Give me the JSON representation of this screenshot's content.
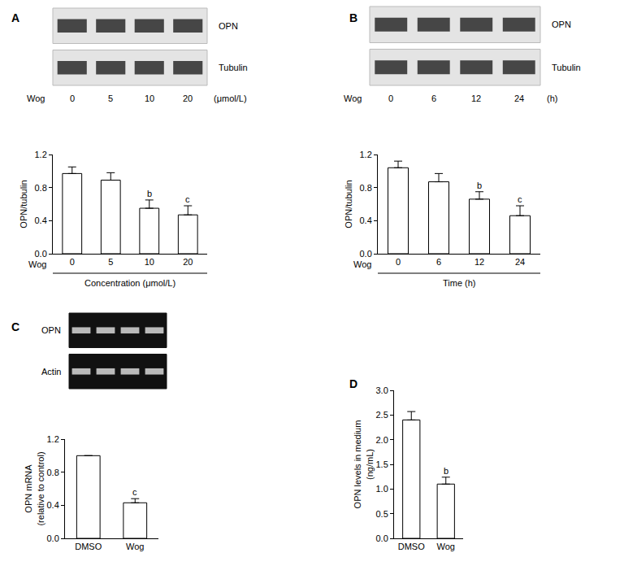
{
  "chart_data": [
    {
      "panel": "A",
      "type": "bar",
      "color": "#ffffff",
      "grid": false,
      "categories": [
        0,
        5,
        10,
        20
      ],
      "values": [
        0.97,
        0.89,
        0.55,
        0.47
      ],
      "errors": [
        0.08,
        0.09,
        0.1,
        0.11
      ],
      "significance": [
        null,
        null,
        "b",
        "c"
      ],
      "ylim": [
        0,
        1.2
      ],
      "yticks": [
        {
          "value": 0,
          "label": "0.0"
        },
        {
          "value": 0.4,
          "label": "0.4"
        },
        {
          "value": 0.8,
          "label": "0.8"
        },
        {
          "value": 1.2,
          "label": "1.2"
        }
      ],
      "ylabel": [
        "OPN/tubulin"
      ],
      "row_label": "Wog",
      "xlabel": "Concentration (μmol/L)",
      "blot": {
        "bands": [
          "OPN",
          "Tubulin"
        ],
        "lane_label": "Wog",
        "lanes": [
          0,
          5,
          10,
          20
        ],
        "lane_unit": "(μmol/L)"
      }
    },
    {
      "panel": "B",
      "type": "bar",
      "color": "#ffffff",
      "grid": false,
      "categories": [
        0,
        6,
        12,
        24
      ],
      "values": [
        1.04,
        0.87,
        0.66,
        0.46
      ],
      "errors": [
        0.08,
        0.1,
        0.09,
        0.12
      ],
      "significance": [
        null,
        null,
        "b",
        "c"
      ],
      "ylim": [
        0,
        1.2
      ],
      "yticks": [
        {
          "value": 0,
          "label": "0.0"
        },
        {
          "value": 0.4,
          "label": "0.4"
        },
        {
          "value": 0.8,
          "label": "0.8"
        },
        {
          "value": 1.2,
          "label": "1.2"
        }
      ],
      "ylabel": [
        "OPN/tubulin"
      ],
      "row_label": "Wog",
      "xlabel": "Time (h)",
      "blot": {
        "bands": [
          "OPN",
          "Tubulin"
        ],
        "lane_label": "Wog",
        "lanes": [
          0,
          6,
          12,
          24
        ],
        "lane_unit": "(h)"
      }
    },
    {
      "panel": "C",
      "type": "bar",
      "color": "#ffffff",
      "grid": false,
      "categories": [
        "DMSO",
        "Wog"
      ],
      "values": [
        1.0,
        0.43
      ],
      "errors": [
        0,
        0.05
      ],
      "significance": [
        null,
        "c"
      ],
      "ylim": [
        0,
        1.2
      ],
      "yticks": [
        {
          "value": 0,
          "label": "0.0"
        },
        {
          "value": 0.4,
          "label": "0.4"
        },
        {
          "value": 0.8,
          "label": "0.8"
        },
        {
          "value": 1.2,
          "label": "1.2"
        }
      ],
      "ylabel": [
        "OPN mRNA",
        "(relative to control)"
      ],
      "blot": {
        "bands": [
          "OPN",
          "Actin"
        ]
      }
    },
    {
      "panel": "D",
      "type": "bar",
      "color": "#ffffff",
      "grid": false,
      "categories": [
        "DMSO",
        "Wog"
      ],
      "values": [
        2.4,
        1.1
      ],
      "errors": [
        0.17,
        0.14
      ],
      "significance": [
        null,
        "b"
      ],
      "ylim": [
        0,
        3.0
      ],
      "yticks": [
        {
          "value": 0,
          "label": "0.0"
        },
        {
          "value": 0.5,
          "label": "0.5"
        },
        {
          "value": 1.0,
          "label": "1.0"
        },
        {
          "value": 1.5,
          "label": "1.5"
        },
        {
          "value": 2.0,
          "label": "2.0"
        },
        {
          "value": 2.5,
          "label": "2.5"
        },
        {
          "value": 3.0,
          "label": "3.0"
        }
      ],
      "ylabel": [
        "OPN levels in medium",
        "(ng/mL)"
      ]
    }
  ]
}
